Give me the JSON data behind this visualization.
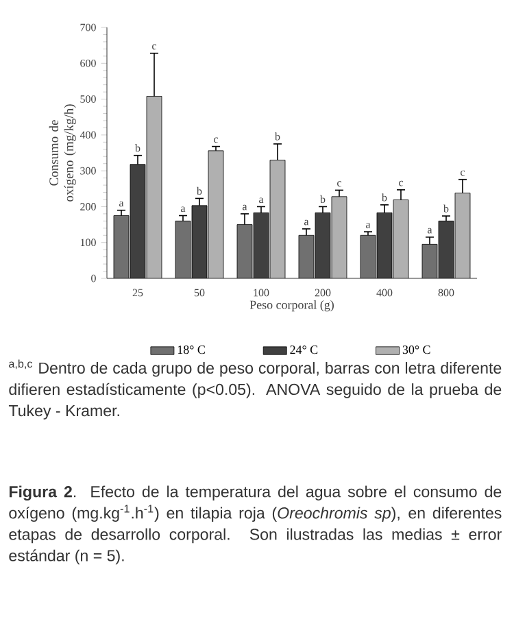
{
  "chart_data": {
    "type": "bar",
    "xlabel": "Peso corporal (g)",
    "ylabel": "Consumo de oxígeno (mg/kg/h)",
    "categories": [
      "25",
      "50",
      "100",
      "200",
      "400",
      "800"
    ],
    "series": [
      {
        "name": "18° C",
        "color": "#707070",
        "values": [
          175,
          160,
          150,
          120,
          120,
          95
        ],
        "errors": [
          15,
          15,
          30,
          18,
          10,
          20
        ]
      },
      {
        "name": "24° C",
        "color": "#404040",
        "values": [
          318,
          203,
          183,
          183,
          183,
          160
        ],
        "errors": [
          25,
          20,
          17,
          17,
          22,
          14
        ]
      },
      {
        "name": "30° C",
        "color": "#b0b0b0",
        "values": [
          508,
          356,
          330,
          228,
          219,
          238
        ],
        "errors": [
          120,
          12,
          45,
          18,
          28,
          38
        ]
      }
    ],
    "ylim": [
      0,
      700
    ],
    "yticks": [
      0,
      100,
      200,
      300,
      400,
      500,
      600,
      700
    ],
    "legend": "bottom",
    "annotations": [
      "$^{a,b,c}$ Dentro de cada grupo de peso corporal, barras con letra diferente difieren estadísticamente (p<0.05). ANOVA seguido de la prueba de Tukey - Kramer.",
      "**Figura 2**. Efecto de la temperatura del agua sobre el consumo de oxígeno (mg.kg$^{-1}$.h$^{-1}$) en tilapia roja (*Oreochromis sp*), en diferentes etapas de desarrollo corporal. Son ilustradas las medias ± error estándar (n = 5).",
      "a",
      "b",
      "c",
      "a",
      "b",
      "c",
      "a",
      "a",
      "b",
      "a",
      "b",
      "c",
      "a",
      "b",
      "c",
      "a",
      "b",
      "c"
    ]
  }
}
